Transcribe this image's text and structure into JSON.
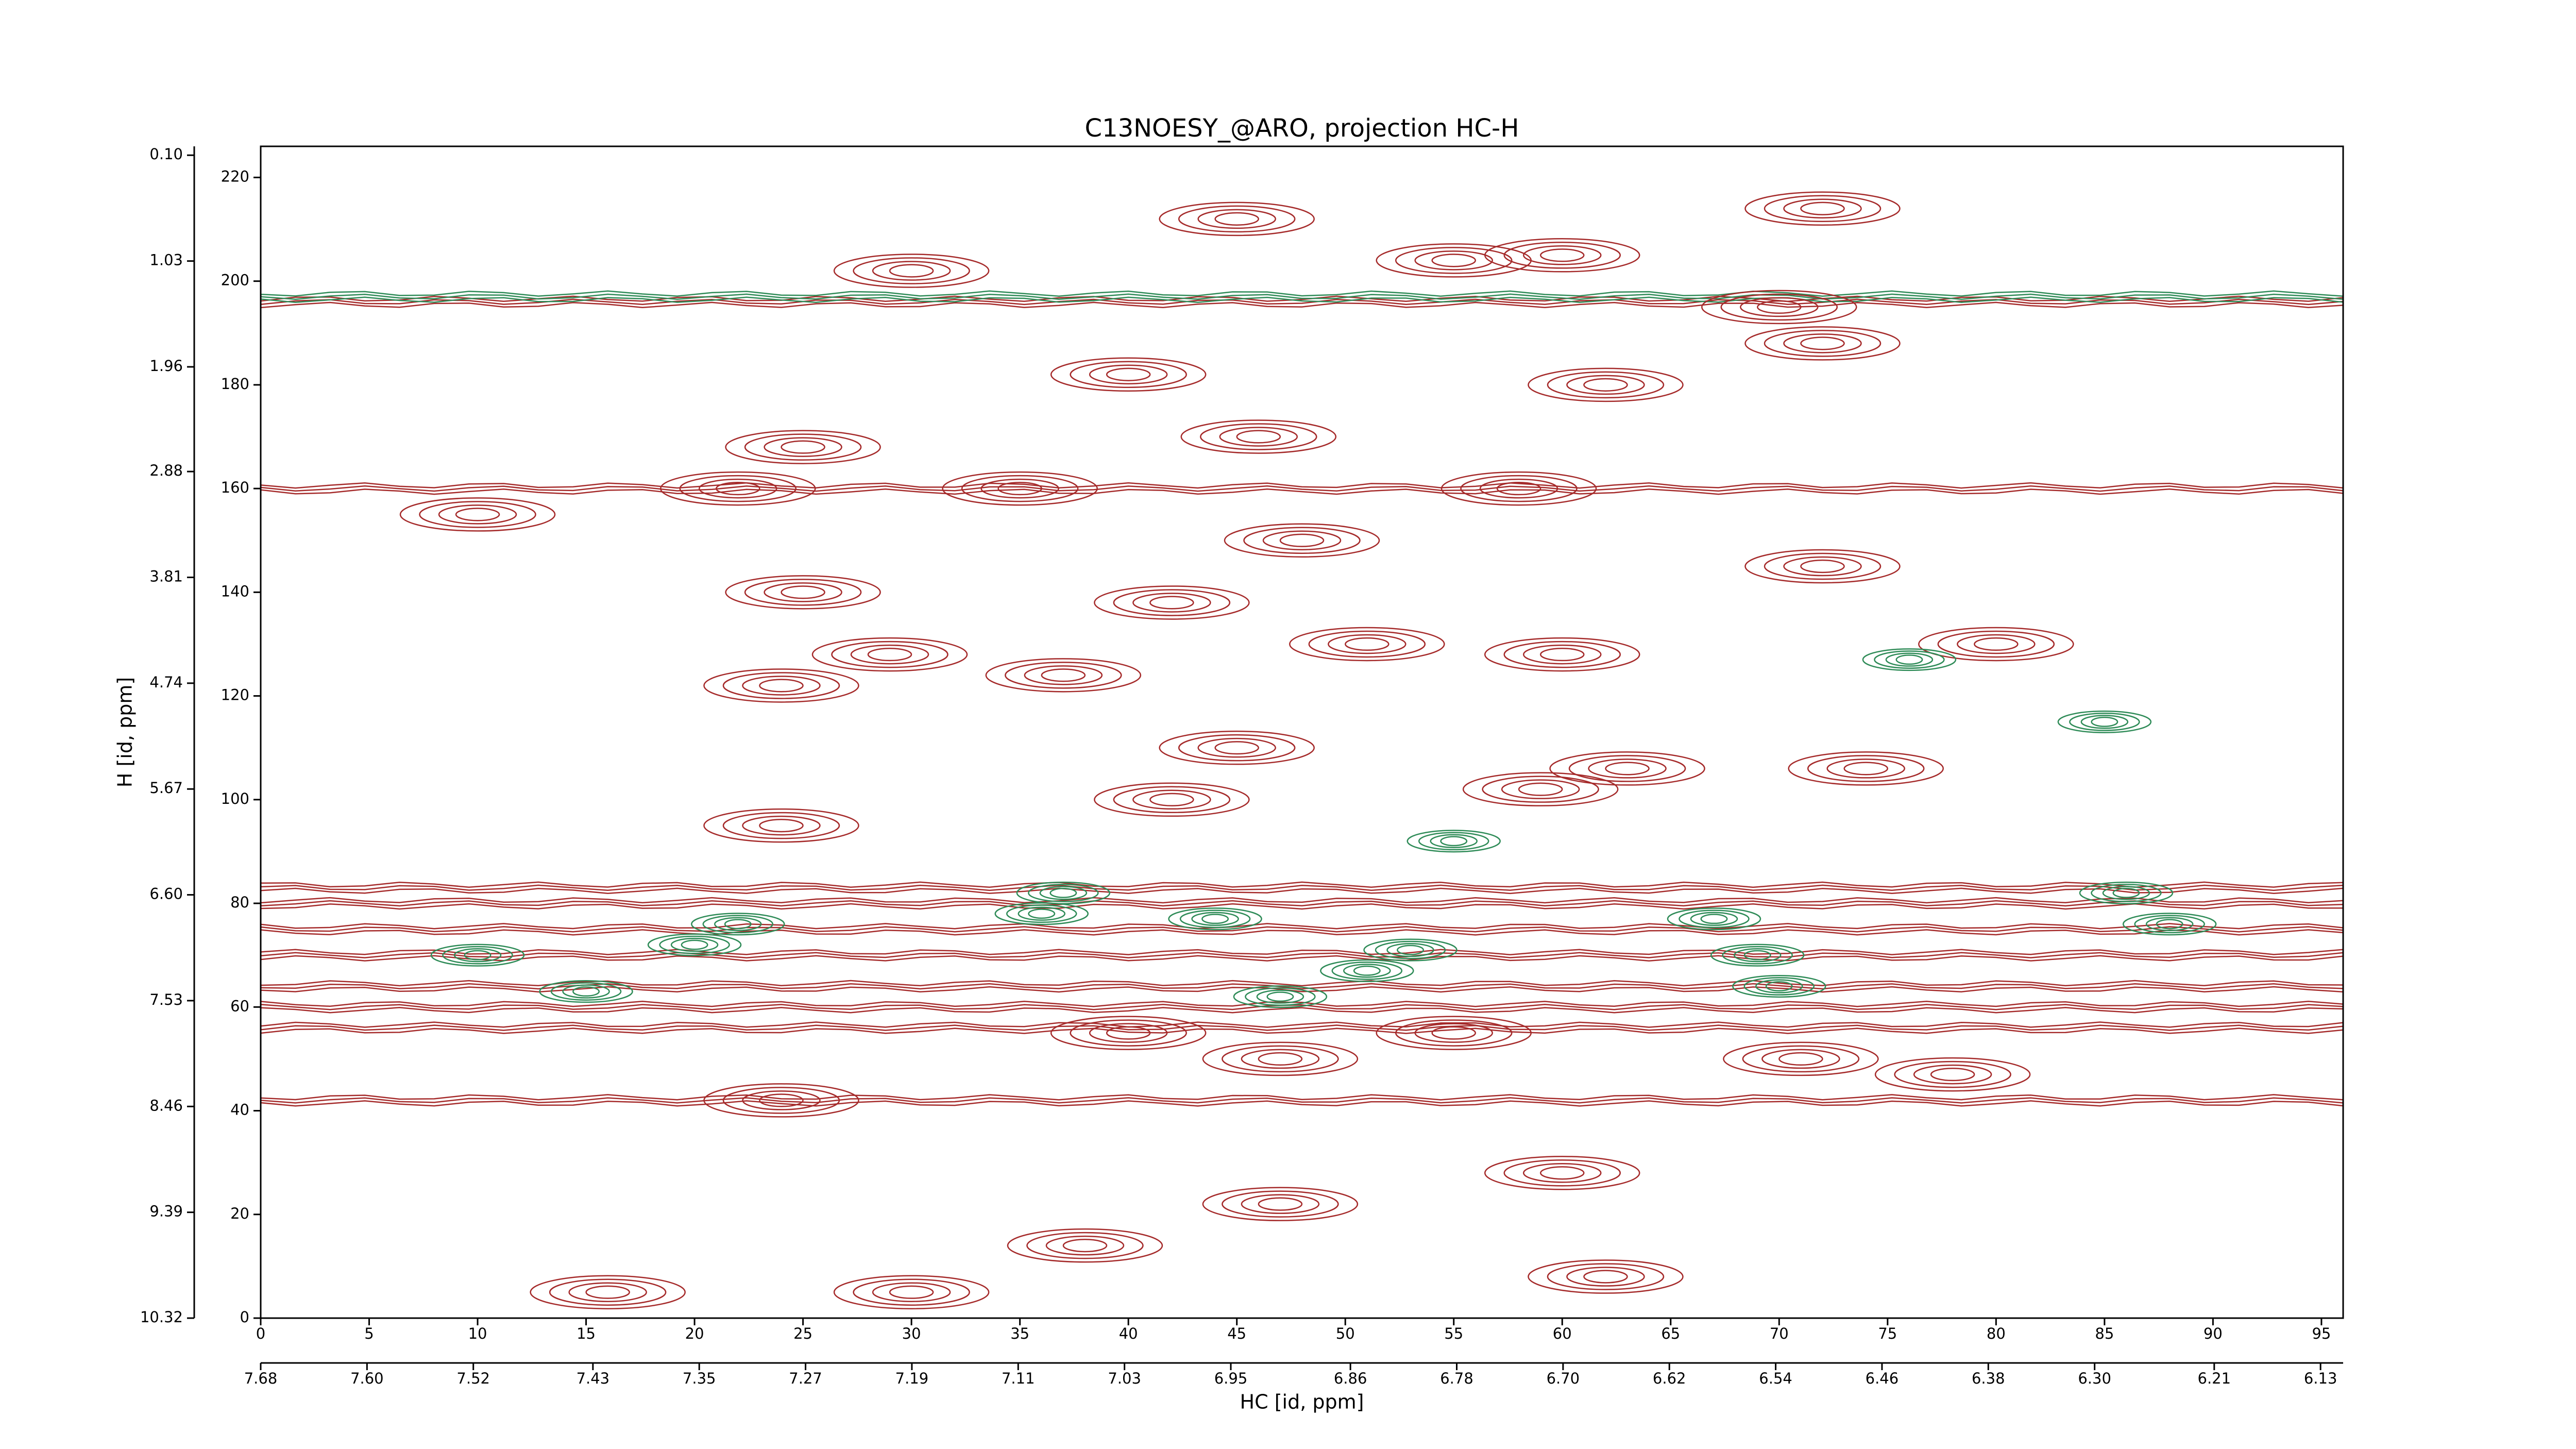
{
  "chart_data": {
    "type": "contour",
    "title": "C13NOESY_@ARO, projection HC-H",
    "xlabel": "HC [id, ppm]",
    "ylabel": "H [id, ppm]",
    "xlim": [
      0,
      96
    ],
    "ylim": [
      0,
      226
    ],
    "xticks": [
      0,
      5,
      10,
      15,
      20,
      25,
      30,
      35,
      40,
      45,
      50,
      55,
      60,
      65,
      70,
      75,
      80,
      85,
      90,
      95
    ],
    "yticks": [
      0,
      20,
      40,
      60,
      80,
      100,
      120,
      140,
      160,
      180,
      200,
      220
    ],
    "x2lim": [
      7.68,
      6.113
    ],
    "x2ticks": [
      {
        "value": 7.68,
        "label": "7.68"
      },
      {
        "value": 7.6,
        "label": "7.60"
      },
      {
        "value": 7.52,
        "label": "7.52"
      },
      {
        "value": 7.43,
        "label": "7.43"
      },
      {
        "value": 7.35,
        "label": "7.35"
      },
      {
        "value": 7.27,
        "label": "7.27"
      },
      {
        "value": 7.19,
        "label": "7.19"
      },
      {
        "value": 7.11,
        "label": "7.11"
      },
      {
        "value": 7.03,
        "label": "7.03"
      },
      {
        "value": 6.95,
        "label": "6.95"
      },
      {
        "value": 6.86,
        "label": "6.86"
      },
      {
        "value": 6.78,
        "label": "6.78"
      },
      {
        "value": 6.7,
        "label": "6.70"
      },
      {
        "value": 6.62,
        "label": "6.62"
      },
      {
        "value": 6.54,
        "label": "6.54"
      },
      {
        "value": 6.46,
        "label": "6.46"
      },
      {
        "value": 6.38,
        "label": "6.38"
      },
      {
        "value": 6.3,
        "label": "6.30"
      },
      {
        "value": 6.21,
        "label": "6.21"
      },
      {
        "value": 6.13,
        "label": "6.13"
      }
    ],
    "y2lim": [
      10.32,
      0.022
    ],
    "y2ticks": [
      {
        "value": 0.1,
        "label": "0.10"
      },
      {
        "value": 1.03,
        "label": "1.03"
      },
      {
        "value": 1.96,
        "label": "1.96"
      },
      {
        "value": 2.88,
        "label": "2.88"
      },
      {
        "value": 3.81,
        "label": "3.81"
      },
      {
        "value": 4.74,
        "label": "4.74"
      },
      {
        "value": 5.67,
        "label": "5.67"
      },
      {
        "value": 6.6,
        "label": "6.60"
      },
      {
        "value": 7.53,
        "label": "7.53"
      },
      {
        "value": 8.46,
        "label": "8.46"
      },
      {
        "value": 9.39,
        "label": "9.39"
      },
      {
        "value": 10.32,
        "label": "10.32"
      }
    ],
    "bands": [
      {
        "color": "#a52a2a",
        "y": [
          42,
          56,
          60,
          64,
          70,
          75,
          80,
          83,
          160,
          196
        ]
      },
      {
        "color": "#2e8b57",
        "y": [
          197
        ]
      }
    ],
    "peaks": [
      {
        "color": "#a52a2a",
        "x": [
          45,
          30,
          55,
          72,
          60,
          70,
          40,
          62,
          72,
          25,
          22,
          35,
          46,
          58,
          48,
          72,
          42,
          51,
          60,
          24,
          29,
          37,
          63,
          45,
          74,
          42,
          59,
          24,
          40,
          47,
          55,
          24,
          71,
          78,
          60,
          47,
          38,
          30,
          16,
          62,
          10,
          25,
          80
        ],
        "y": [
          212,
          202,
          204,
          214,
          205,
          195,
          182,
          180,
          188,
          168,
          160,
          160,
          170,
          160,
          150,
          145,
          138,
          130,
          128,
          122,
          128,
          124,
          106,
          110,
          106,
          100,
          102,
          95,
          55,
          50,
          55,
          42,
          50,
          47,
          28,
          22,
          14,
          5,
          5,
          8,
          155,
          140,
          130
        ]
      },
      {
        "color": "#2e8b57",
        "x": [
          10,
          22,
          20,
          36,
          37,
          44,
          47,
          53,
          51,
          67,
          69,
          70,
          88,
          86,
          15,
          55,
          76,
          85
        ],
        "y": [
          70,
          76,
          72,
          78,
          82,
          77,
          62,
          71,
          67,
          77,
          70,
          64,
          76,
          82,
          63,
          92,
          127,
          115
        ]
      }
    ]
  }
}
